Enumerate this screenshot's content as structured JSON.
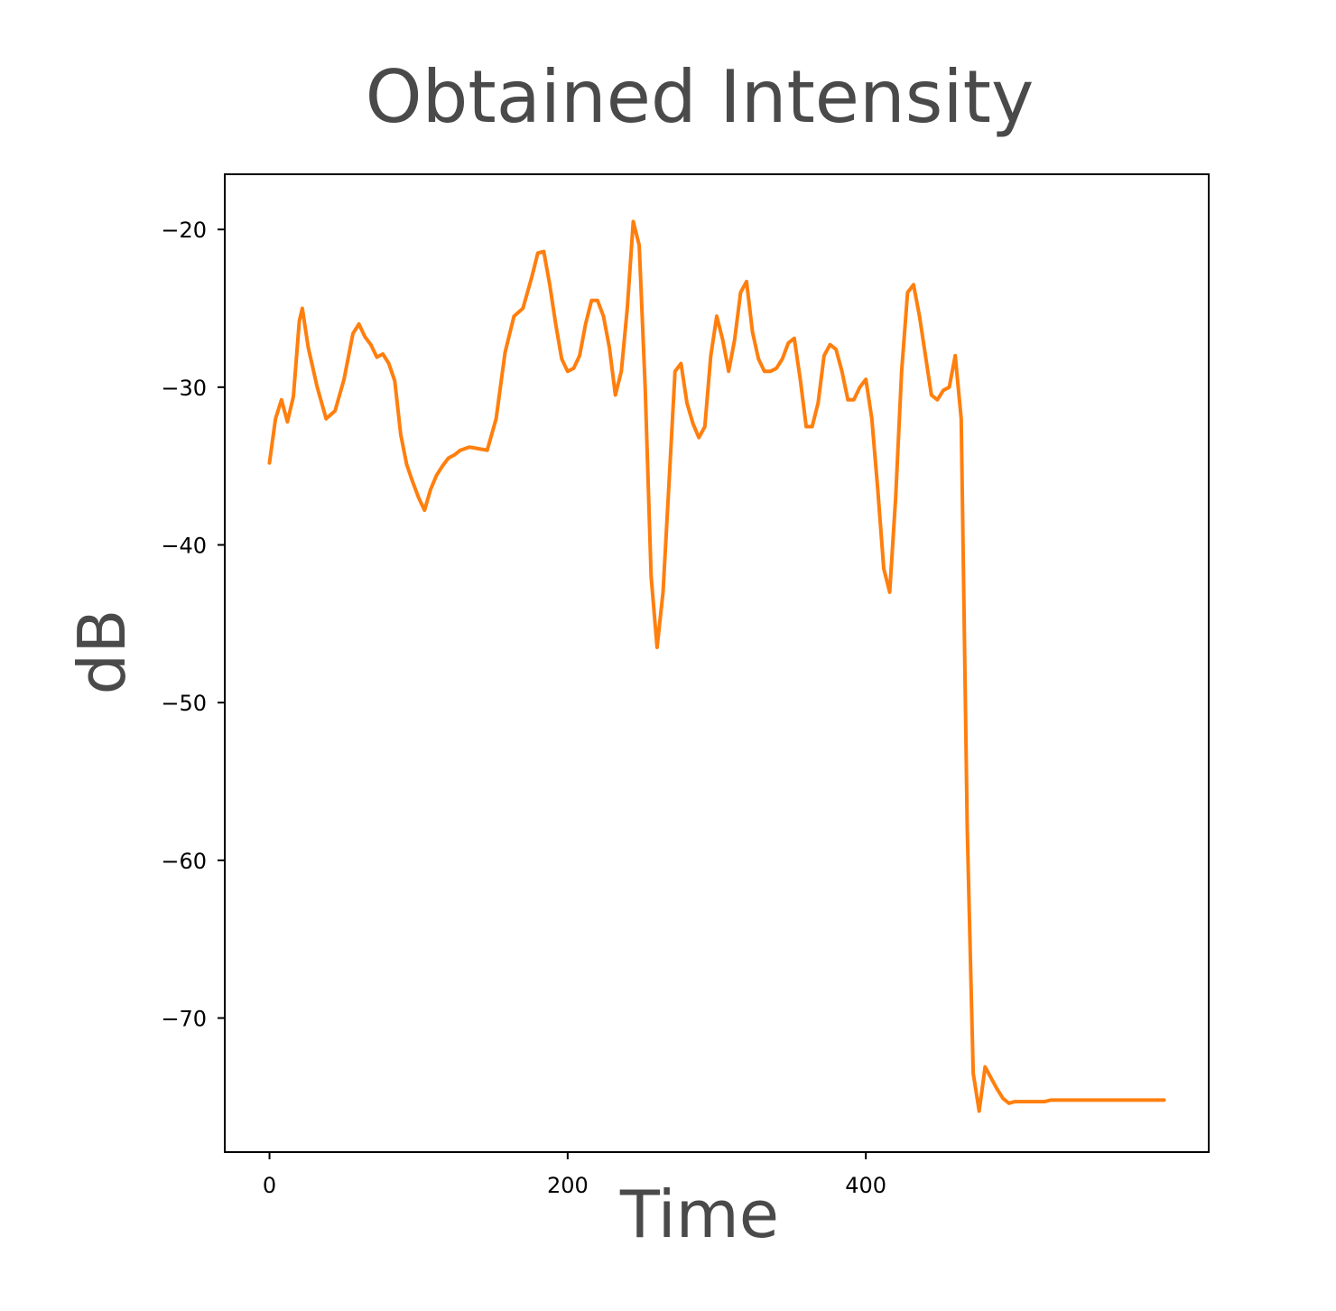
{
  "chart_data": {
    "type": "line",
    "title": "Obtained Intensity",
    "xlabel": "Time",
    "ylabel": "dB",
    "xlim": [
      -30,
      630
    ],
    "ylim": [
      -78.5,
      -16.5
    ],
    "xticks": [
      0,
      200,
      400
    ],
    "xtick_labels": [
      "0",
      "200",
      "400"
    ],
    "yticks": [
      -20,
      -30,
      -40,
      -50,
      -60,
      -70
    ],
    "ytick_labels": [
      "−20",
      "−30",
      "−40",
      "−50",
      "−60",
      "−70"
    ],
    "grid": false,
    "legend": "none",
    "colors": {
      "line": "#ff7f0e",
      "title": "#4a4a4a",
      "axes": "#000000"
    },
    "series": [
      {
        "x": [
          0,
          4,
          8,
          12,
          16,
          20,
          22,
          26,
          32,
          38,
          44,
          50,
          56,
          60,
          64,
          68,
          72,
          76,
          80,
          84,
          88,
          92,
          96,
          100,
          104,
          108,
          112,
          116,
          120,
          124,
          128,
          134,
          140,
          146,
          152,
          158,
          164,
          170,
          176,
          180,
          184,
          188,
          192,
          196,
          200,
          204,
          208,
          212,
          216,
          220,
          224,
          228,
          232,
          236,
          240,
          244,
          248,
          252,
          256,
          260,
          264,
          268,
          272,
          276,
          280,
          284,
          288,
          292,
          296,
          300,
          304,
          308,
          312,
          316,
          320,
          324,
          328,
          332,
          336,
          340,
          344,
          348,
          352,
          356,
          360,
          364,
          368,
          372,
          376,
          380,
          384,
          388,
          392,
          396,
          400,
          404,
          408,
          412,
          416,
          420,
          424,
          428,
          432,
          436,
          440,
          444,
          448,
          452,
          456,
          460,
          464,
          468,
          472,
          476,
          480,
          484,
          488,
          492,
          496,
          500,
          504,
          508,
          512,
          516,
          520,
          524,
          528,
          532,
          536,
          540,
          544,
          548,
          552,
          556,
          560,
          564,
          568,
          572,
          576,
          580,
          584,
          588,
          592,
          596,
          600
        ],
        "y": [
          -34.8,
          -32.0,
          -30.8,
          -32.2,
          -30.6,
          -25.8,
          -25.0,
          -27.5,
          -30.0,
          -32.0,
          -31.5,
          -29.5,
          -26.6,
          -26.0,
          -26.8,
          -27.3,
          -28.1,
          -27.9,
          -28.5,
          -29.6,
          -33.0,
          -34.9,
          -36.0,
          -37.0,
          -37.8,
          -36.5,
          -35.6,
          -35.0,
          -34.5,
          -34.3,
          -34.0,
          -33.8,
          -33.9,
          -34.0,
          -32.0,
          -27.8,
          -25.5,
          -25.0,
          -23.0,
          -21.5,
          -21.4,
          -23.5,
          -26.0,
          -28.2,
          -29.0,
          -28.8,
          -28.0,
          -26.0,
          -24.5,
          -24.5,
          -25.5,
          -27.5,
          -30.5,
          -29.0,
          -25.0,
          -19.5,
          -21.0,
          -30.0,
          -42.0,
          -46.5,
          -43.0,
          -36.0,
          -29.0,
          -28.5,
          -31.0,
          -32.3,
          -33.2,
          -32.5,
          -28.0,
          -25.5,
          -27.0,
          -29.0,
          -27.0,
          -24.0,
          -23.3,
          -26.5,
          -28.2,
          -29.0,
          -29.0,
          -28.8,
          -28.2,
          -27.2,
          -26.9,
          -29.5,
          -32.5,
          -32.5,
          -31.0,
          -28.0,
          -27.3,
          -27.6,
          -29.0,
          -30.8,
          -30.8,
          -30.0,
          -29.5,
          -32.0,
          -36.5,
          -41.5,
          -43.0,
          -37.0,
          -29.0,
          -24.0,
          -23.5,
          -25.5,
          -28.0,
          -30.5,
          -30.8,
          -30.2,
          -30.0,
          -28.0,
          -32.0,
          -58.0,
          -73.5,
          -75.9,
          -73.1,
          -73.8,
          -74.5,
          -75.1,
          -75.4,
          -75.3,
          -75.3,
          -75.3,
          -75.3,
          -75.3,
          -75.3,
          -75.2,
          -75.2,
          -75.2,
          -75.2,
          -75.2,
          -75.2,
          -75.2,
          -75.2,
          -75.2,
          -75.2,
          -75.2,
          -75.2,
          -75.2,
          -75.2,
          -75.2,
          -75.2,
          -75.2,
          -75.2,
          -75.2,
          -75.2
        ]
      }
    ]
  }
}
